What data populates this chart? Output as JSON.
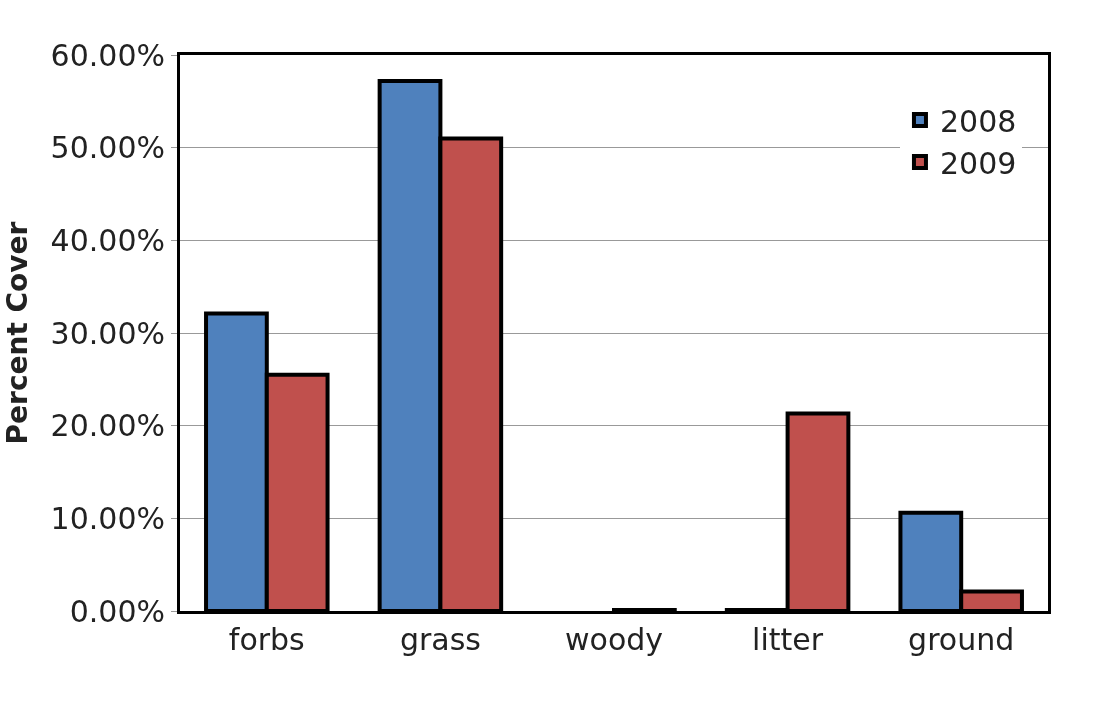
{
  "chart_data": {
    "type": "bar",
    "ylabel": "Percent Cover",
    "categories": [
      "forbs",
      "grass",
      "woody",
      "litter",
      "ground"
    ],
    "series": [
      {
        "name": "2008",
        "color": "#4f81bd",
        "values": [
          32.1,
          57.2,
          null,
          0.1,
          10.6
        ]
      },
      {
        "name": "2009",
        "color": "#c0504d",
        "values": [
          25.5,
          51.0,
          0.1,
          21.3,
          2.1
        ]
      }
    ],
    "ylim": [
      0,
      60
    ],
    "yticks": [
      {
        "value": 0,
        "label": "0.00%"
      },
      {
        "value": 10,
        "label": "10.00%"
      },
      {
        "value": 20,
        "label": "20.00%"
      },
      {
        "value": 30,
        "label": "30.00%"
      },
      {
        "value": 40,
        "label": "40.00%"
      },
      {
        "value": 50,
        "label": "50.00%"
      },
      {
        "value": 60,
        "label": "60.00%"
      }
    ],
    "grid": "y",
    "legend": "top right"
  }
}
